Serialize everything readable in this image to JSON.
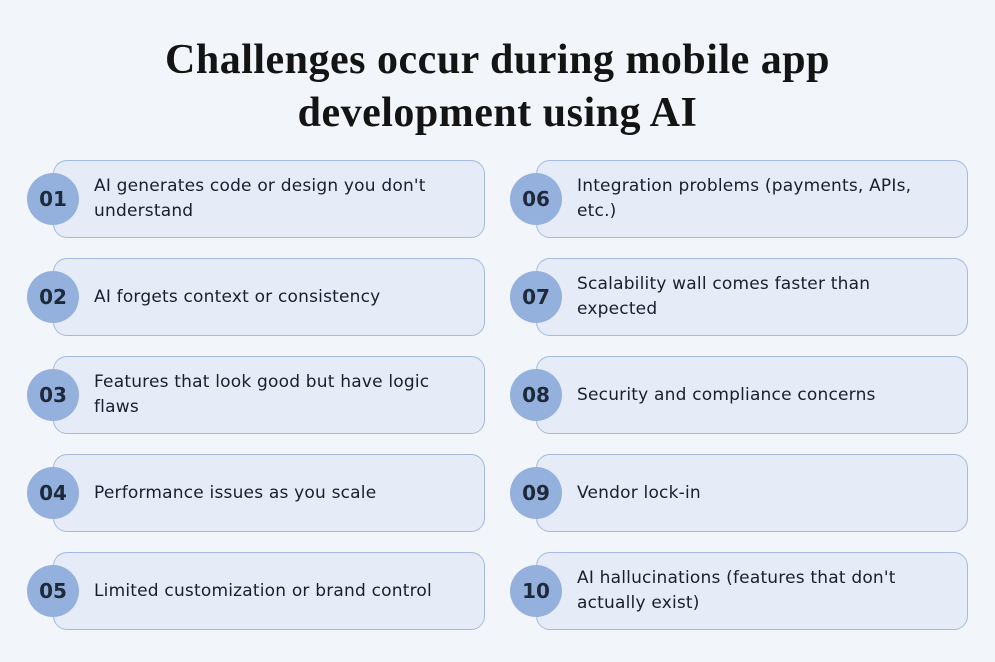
{
  "title": {
    "line1": "Challenges occur during mobile app",
    "line2": "development using AI"
  },
  "items": [
    {
      "number": "01",
      "text": "AI generates code or design you don't understand"
    },
    {
      "number": "02",
      "text": "AI forgets context or consistency"
    },
    {
      "number": "03",
      "text": "Features that look good but have logic flaws"
    },
    {
      "number": "04",
      "text": "Performance issues as you scale"
    },
    {
      "number": "05",
      "text": "Limited customization or brand control"
    },
    {
      "number": "06",
      "text": "Integration problems (payments, APIs, etc.)"
    },
    {
      "number": "07",
      "text": "Scalability wall comes faster than expected"
    },
    {
      "number": "08",
      "text": "Security and compliance concerns"
    },
    {
      "number": "09",
      "text": "Vendor lock-in"
    },
    {
      "number": "10",
      "text": "AI hallucinations (features that don't actually exist)"
    }
  ],
  "colors": {
    "page_bg": "#F2F6FB",
    "card_bg": "#E5EBF7",
    "card_border": "#A6B9DF",
    "circle_bg": "#94B0DD",
    "number_color": "#1E2A3A",
    "text_color": "#17202E",
    "title_color": "#141414"
  }
}
